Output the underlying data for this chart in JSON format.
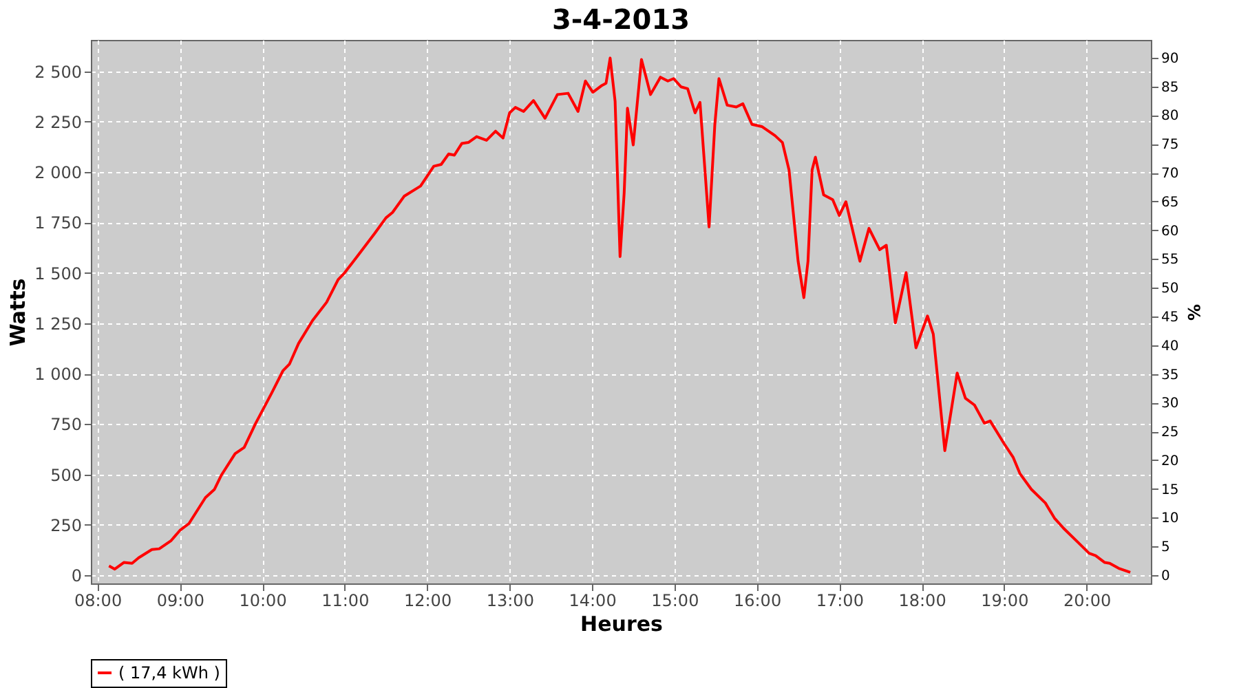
{
  "chart_data": {
    "type": "line",
    "title": "3-4-2013",
    "xlabel": "Heures",
    "ylabel": "Watts",
    "y2label": "%",
    "x": [
      8.14,
      8.21,
      8.32,
      8.42,
      8.5,
      8.66,
      8.75,
      8.89,
      9.0,
      9.11,
      9.31,
      9.42,
      9.5,
      9.67,
      9.78,
      9.92,
      10.11,
      10.25,
      10.33,
      10.44,
      10.61,
      10.78,
      10.92,
      11.0,
      11.17,
      11.36,
      11.5,
      11.58,
      11.72,
      11.92,
      12.08,
      12.17,
      12.26,
      12.33,
      12.42,
      12.5,
      12.6,
      12.72,
      12.83,
      12.92,
      13.0,
      13.07,
      13.17,
      13.29,
      13.43,
      13.58,
      13.71,
      13.83,
      13.92,
      14.01,
      14.12,
      14.17,
      14.22,
      14.28,
      14.34,
      14.39,
      14.43,
      14.5,
      14.6,
      14.71,
      14.83,
      14.92,
      14.99,
      15.08,
      15.16,
      15.25,
      15.31,
      15.42,
      15.49,
      15.54,
      15.64,
      15.75,
      15.83,
      15.94,
      16.06,
      16.22,
      16.31,
      16.39,
      16.5,
      16.57,
      16.62,
      16.67,
      16.71,
      16.81,
      16.92,
      17.0,
      17.08,
      17.25,
      17.36,
      17.49,
      17.57,
      17.68,
      17.81,
      17.93,
      18.07,
      18.14,
      18.28,
      18.43,
      18.53,
      18.64,
      18.76,
      18.83,
      19.0,
      19.11,
      19.19,
      19.33,
      19.5,
      19.61,
      19.72,
      19.89,
      20.03,
      20.11,
      20.22,
      20.28,
      20.39,
      20.53
    ],
    "series": [
      {
        "name": "( 17,4 kWh )",
        "color": "#ff0000",
        "values": [
          46,
          30,
          63,
          59,
          86,
          127,
          131,
          170,
          222,
          256,
          385,
          426,
          494,
          603,
          634,
          754,
          901,
          1014,
          1048,
          1150,
          1264,
          1354,
          1467,
          1501,
          1592,
          1694,
          1773,
          1800,
          1880,
          1931,
          2029,
          2038,
          2090,
          2084,
          2142,
          2147,
          2176,
          2158,
          2203,
          2169,
          2294,
          2321,
          2301,
          2355,
          2267,
          2385,
          2391,
          2301,
          2452,
          2396,
          2430,
          2441,
          2566,
          2351,
          1581,
          1897,
          2317,
          2135,
          2559,
          2385,
          2471,
          2452,
          2464,
          2423,
          2414,
          2294,
          2346,
          1728,
          2237,
          2464,
          2332,
          2323,
          2339,
          2237,
          2226,
          2181,
          2147,
          2011,
          1558,
          1377,
          1558,
          2011,
          2074,
          1887,
          1863,
          1785,
          1853,
          1558,
          1721,
          1615,
          1637,
          1252,
          1501,
          1128,
          1286,
          1196,
          618,
          1003,
          878,
          844,
          754,
          765,
          652,
          584,
          505,
          426,
          358,
          283,
          233,
          165,
          109,
          97,
          63,
          59,
          34,
          14
        ]
      }
    ],
    "xlim": [
      7.92,
      20.78
    ],
    "xticks": [
      {
        "value": 8,
        "label": "08:00"
      },
      {
        "value": 9,
        "label": "09:00"
      },
      {
        "value": 10,
        "label": "10:00"
      },
      {
        "value": 11,
        "label": "11:00"
      },
      {
        "value": 12,
        "label": "12:00"
      },
      {
        "value": 13,
        "label": "13:00"
      },
      {
        "value": 14,
        "label": "14:00"
      },
      {
        "value": 15,
        "label": "15:00"
      },
      {
        "value": 16,
        "label": "16:00"
      },
      {
        "value": 17,
        "label": "17:00"
      },
      {
        "value": 18,
        "label": "18:00"
      },
      {
        "value": 19,
        "label": "19:00"
      },
      {
        "value": 20,
        "label": "20:00"
      }
    ],
    "ylim": [
      -41,
      2656
    ],
    "yticks": [
      0,
      250,
      500,
      750,
      {
        "value": 1000,
        "label": "1 000"
      },
      {
        "value": 1250,
        "label": "1 250"
      },
      {
        "value": 1500,
        "label": "1 500"
      },
      {
        "value": 1750,
        "label": "1 750"
      },
      {
        "value": 2000,
        "label": "2 000"
      },
      {
        "value": 2250,
        "label": "2 250"
      },
      {
        "value": 2500,
        "label": "2 500"
      }
    ],
    "y2lim": [
      -1.43,
      93.1
    ],
    "y2ticks": [
      0,
      5,
      10,
      15,
      20,
      25,
      30,
      35,
      40,
      45,
      50,
      55,
      60,
      65,
      70,
      75,
      80,
      85,
      90
    ],
    "grid": true,
    "legend": "bottom",
    "line_style": "solid",
    "marker": "none"
  }
}
